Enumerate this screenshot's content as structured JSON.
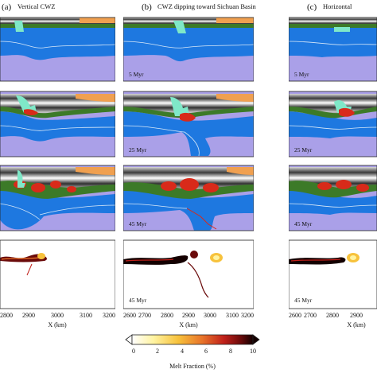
{
  "columns": [
    {
      "letter": "(a)",
      "title": "Vertical CWZ"
    },
    {
      "letter": "(b)",
      "title": "CWZ dipping toward Sichuan Basin"
    },
    {
      "letter": "(c)",
      "title": "Horizontal"
    }
  ],
  "time_labels": [
    "5 Myr",
    "25 Myr",
    "45 Myr",
    "45 Myr"
  ],
  "x_axis": {
    "title": "X (km)",
    "ticks_a": [
      "2800",
      "2900",
      "3000",
      "3100",
      "3200"
    ],
    "ticks_b": [
      "2600",
      "2700",
      "2800",
      "2900",
      "3000",
      "3100",
      "3200"
    ],
    "ticks_c": [
      "2600",
      "2700",
      "2800",
      "2900"
    ]
  },
  "colorbar": {
    "title": "Melt Fraction (%)",
    "ticks": [
      "0",
      "2",
      "4",
      "6",
      "8",
      "10"
    ],
    "colors": [
      "#ffffff",
      "#fff3a0",
      "#f7c23c",
      "#e8742a",
      "#c0201a",
      "#6a0a0a",
      "#140000"
    ]
  },
  "colors": {
    "mantle": "#aaa0e8",
    "lithosphere": "#1e78e0",
    "lithosphere_light": "#4aa0f0",
    "crust_green": "#3c7a28",
    "crust_dark": "#2a2a2a",
    "crust_red": "#d82a1a",
    "sediment_orange": "#f0a050",
    "sediment_grey": "#b8b8b8",
    "cwz_cyan": "#7fe8c8",
    "isotherm": "#d8e8f8"
  }
}
